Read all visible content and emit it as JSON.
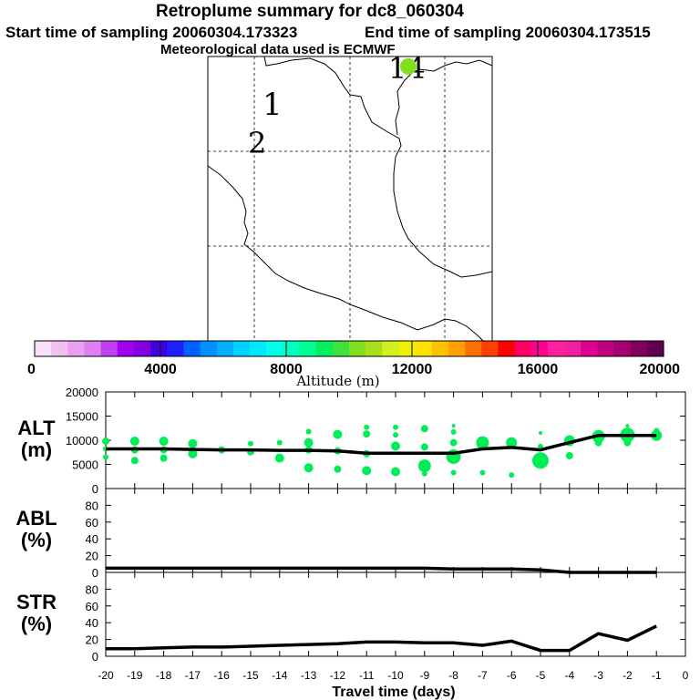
{
  "header": {
    "title": "Retroplume summary for dc8_060304",
    "start_label": "Start time of sampling 20060304.173323",
    "end_label": "End time of sampling 20060304.173515",
    "met_label": "Meteorological data used is ECMWF"
  },
  "map": {
    "markers": [
      {
        "label": "1",
        "color": "#000000"
      },
      {
        "label": "2",
        "color": "#000000"
      },
      {
        "label": "14",
        "color": "#000000"
      }
    ],
    "release_point_color": "#80e020"
  },
  "colorbar": {
    "title": "Altitude (m)",
    "ticks": [
      "0",
      "4000",
      "8000",
      "12000",
      "16000",
      "20000"
    ],
    "colors": [
      "#f8e0f8",
      "#f0c0f0",
      "#e8a0f0",
      "#e080f0",
      "#c040f0",
      "#a000f0",
      "#8000e0",
      "#4000e0",
      "#2020ff",
      "#0060ff",
      "#0090ff",
      "#00b0ff",
      "#00d0ff",
      "#00e8ff",
      "#00ffe8",
      "#00ffc0",
      "#00ff90",
      "#00f060",
      "#40e040",
      "#80e020",
      "#a8e020",
      "#d0f020",
      "#f0f000",
      "#ffe000",
      "#ffc000",
      "#ffa000",
      "#ff7000",
      "#ff4000",
      "#ff0000",
      "#ff0060",
      "#ff0090",
      "#ff20a0",
      "#f020a0",
      "#e00090",
      "#c00080",
      "#a00070",
      "#800060",
      "#600050"
    ]
  },
  "chart_data": [
    {
      "type": "line",
      "panel": "ALT",
      "ylabel": "ALT\n(m)",
      "ylabel_lines": [
        "ALT",
        "(m)"
      ],
      "ylim": [
        0,
        20000
      ],
      "yticks": [
        "0",
        "5000",
        "10000",
        "15000",
        "20000"
      ],
      "x": [
        -20,
        -19,
        -18,
        -17,
        -16,
        -15,
        -14,
        -13,
        -12,
        -11,
        -10,
        -9,
        -8,
        -7,
        -6,
        -5,
        -4,
        -3,
        -2,
        -1
      ],
      "values": [
        8200,
        8200,
        8200,
        8100,
        8000,
        8000,
        7900,
        7900,
        7800,
        7300,
        7300,
        7300,
        7300,
        8200,
        8500,
        8000,
        9500,
        11000,
        11000,
        11000
      ],
      "scatter_color": "#00ee55",
      "scatter_points": [
        [
          -20,
          9800,
          4
        ],
        [
          -20,
          8200,
          3
        ],
        [
          -20,
          6500,
          3
        ],
        [
          -19,
          9800,
          5
        ],
        [
          -19,
          8000,
          4
        ],
        [
          -19,
          5800,
          4
        ],
        [
          -18,
          9800,
          5
        ],
        [
          -18,
          8000,
          4
        ],
        [
          -18,
          6300,
          4
        ],
        [
          -17,
          9300,
          5
        ],
        [
          -17,
          7200,
          5
        ],
        [
          -16,
          8000,
          4
        ],
        [
          -15,
          9300,
          3
        ],
        [
          -15,
          7600,
          4
        ],
        [
          -14,
          9500,
          3
        ],
        [
          -14,
          6300,
          5
        ],
        [
          -13,
          11800,
          3
        ],
        [
          -13,
          9500,
          5
        ],
        [
          -13,
          8000,
          4
        ],
        [
          -13,
          4300,
          5
        ],
        [
          -12,
          11200,
          5
        ],
        [
          -12,
          7800,
          4
        ],
        [
          -12,
          4000,
          4
        ],
        [
          -11,
          12700,
          3
        ],
        [
          -11,
          11300,
          4
        ],
        [
          -11,
          7200,
          4
        ],
        [
          -11,
          3700,
          5
        ],
        [
          -10,
          12700,
          3
        ],
        [
          -10,
          11100,
          3
        ],
        [
          -10,
          8800,
          5
        ],
        [
          -10,
          3500,
          5
        ],
        [
          -9,
          12400,
          4
        ],
        [
          -9,
          8600,
          4
        ],
        [
          -9,
          4700,
          7
        ],
        [
          -9,
          3100,
          3
        ],
        [
          -8,
          13000,
          2
        ],
        [
          -8,
          11700,
          3
        ],
        [
          -8,
          9500,
          4
        ],
        [
          -8,
          6600,
          8
        ],
        [
          -8,
          3300,
          3
        ],
        [
          -7,
          9500,
          7
        ],
        [
          -7,
          3300,
          3
        ],
        [
          -6,
          9500,
          6
        ],
        [
          -6,
          2800,
          3
        ],
        [
          -5,
          11500,
          2
        ],
        [
          -5,
          8700,
          3
        ],
        [
          -5,
          5800,
          9
        ],
        [
          -4,
          9900,
          6
        ],
        [
          -4,
          6800,
          4
        ],
        [
          -3,
          10800,
          7
        ],
        [
          -3,
          9500,
          4
        ],
        [
          -2,
          13000,
          2
        ],
        [
          -2,
          11100,
          8
        ],
        [
          -2,
          9500,
          4
        ],
        [
          -1,
          11000,
          6
        ],
        [
          -1,
          12000,
          3
        ]
      ]
    },
    {
      "type": "line",
      "panel": "ABL",
      "ylabel": "ABL\n(%)",
      "ylabel_lines": [
        "ABL",
        "(%)"
      ],
      "ylim": [
        0,
        100
      ],
      "yticks": [
        "0",
        "20",
        "40",
        "60",
        "80"
      ],
      "x": [
        -20,
        -19,
        -18,
        -17,
        -16,
        -15,
        -14,
        -13,
        -12,
        -11,
        -10,
        -9,
        -8,
        -7,
        -6,
        -5,
        -4,
        -3,
        -2,
        -1
      ],
      "values": [
        5,
        5,
        5,
        5,
        5,
        5,
        5,
        5,
        5,
        5,
        5,
        5,
        4,
        4,
        4,
        3,
        0,
        0,
        0,
        0
      ]
    },
    {
      "type": "line",
      "panel": "STR",
      "ylabel": "STR\n(%)",
      "ylabel_lines": [
        "STR",
        "(%)"
      ],
      "ylim": [
        0,
        100
      ],
      "yticks": [
        "0",
        "20",
        "40",
        "60",
        "80"
      ],
      "x": [
        -20,
        -19,
        -18,
        -17,
        -16,
        -15,
        -14,
        -13,
        -12,
        -11,
        -10,
        -9,
        -8,
        -7,
        -6,
        -5,
        -4,
        -3,
        -2,
        -1
      ],
      "values": [
        9,
        9,
        10,
        11,
        11,
        12,
        13,
        14,
        15,
        17,
        17,
        16,
        16,
        13,
        18,
        7,
        7,
        27,
        19,
        36
      ]
    },
    {
      "type": "axis",
      "xlabel": "Travel time (days)",
      "xlim": [
        -20,
        0
      ],
      "xticks": [
        "-20",
        "-19",
        "-18",
        "-17",
        "-16",
        "-15",
        "-14",
        "-13",
        "-12",
        "-11",
        "-10",
        "-9",
        "-8",
        "-7",
        "-6",
        "-5",
        "-4",
        "-3",
        "-2",
        "-1",
        "0"
      ]
    }
  ]
}
